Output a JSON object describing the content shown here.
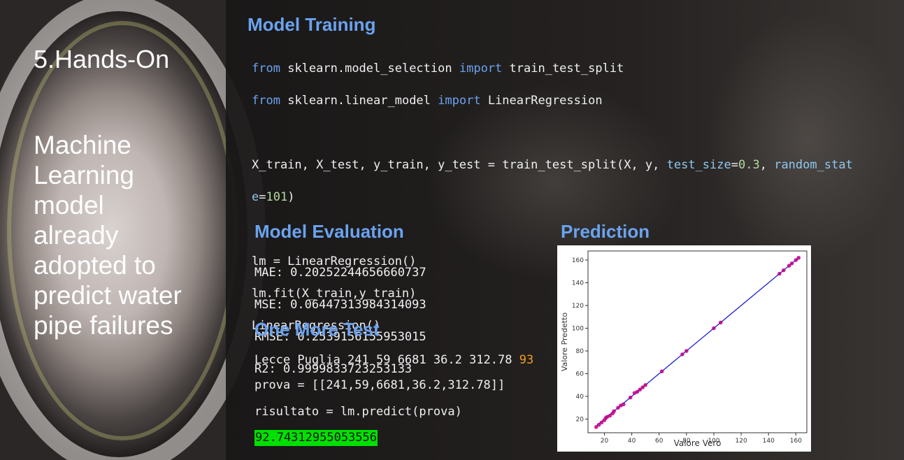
{
  "left": {
    "heading": "5.Hands-On",
    "body_lines": [
      "Machine",
      "Learning",
      "model",
      "already",
      "adopted to",
      "predict water",
      "pipe failures"
    ]
  },
  "training": {
    "title": "Model Training",
    "line1": {
      "kw1": "from",
      "mod": "sklearn.model_selection",
      "kw2": "import",
      "name": "train_test_split"
    },
    "line2": {
      "kw1": "from",
      "mod": "sklearn.linear_model",
      "kw2": "import",
      "name": "LinearRegression"
    },
    "split_pre": "X_train, X_test, y_train, y_test = train_test_split(X, y, ",
    "split_param1": "test_size",
    "split_eq1": "=",
    "split_val1": "0.3",
    "split_sep": ", ",
    "split_param2a": "random_stat",
    "split_param2b": "e",
    "split_eq2": "=",
    "split_val2": "101",
    "split_close": ")",
    "lm_line1": "lm = LinearRegression()",
    "lm_line2": "lm.fit(X_train,y_train)",
    "lm_line3": "LinearRegression()"
  },
  "evaluation": {
    "title": "Model Evaluation",
    "mae": "MAE: 0.20252244656660737",
    "mse": "MSE: 0.06447313984314093",
    "rmse": "RMSE: 0.2539156155953015",
    "r2": "R2: 0.9999833723253133"
  },
  "test": {
    "title": "One More Test",
    "row": "Lecce Puglia 241 59 6681 36.2 312.78",
    "row_target": "93",
    "prova": "prova = [[241,59,6681,36.2,312.78]]",
    "risultato": "risultato = lm.predict(prova)",
    "output": "92.74312955053556"
  },
  "prediction": {
    "title": "Prediction"
  },
  "colors": {
    "title_blue": "#6aa3f0",
    "point": "#c0008a",
    "line": "#1f1fd0",
    "result_bg": "#00e000"
  },
  "chart_data": {
    "type": "scatter",
    "xlabel": "Valore Vero",
    "ylabel": "Valore Predetto",
    "xlim": [
      8,
      168
    ],
    "ylim": [
      8,
      168
    ],
    "xticks": [
      20,
      40,
      60,
      80,
      100,
      120,
      140,
      160
    ],
    "yticks": [
      20,
      40,
      60,
      80,
      100,
      120,
      140,
      160
    ],
    "points": [
      [
        14,
        13
      ],
      [
        16,
        15
      ],
      [
        18,
        17
      ],
      [
        20,
        19
      ],
      [
        21,
        21
      ],
      [
        22,
        22
      ],
      [
        24,
        23
      ],
      [
        26,
        25
      ],
      [
        27,
        27
      ],
      [
        30,
        30
      ],
      [
        32,
        32
      ],
      [
        34,
        33
      ],
      [
        39,
        39
      ],
      [
        42,
        43
      ],
      [
        44,
        44
      ],
      [
        46,
        46
      ],
      [
        48,
        48
      ],
      [
        50,
        50
      ],
      [
        62,
        62
      ],
      [
        77,
        77
      ],
      [
        80,
        80
      ],
      [
        100,
        100
      ],
      [
        105,
        105
      ],
      [
        148,
        148
      ],
      [
        151,
        151
      ],
      [
        155,
        155
      ],
      [
        157,
        157
      ],
      [
        160,
        160
      ],
      [
        162,
        162
      ]
    ],
    "fit_line": [
      [
        14,
        14
      ],
      [
        162,
        162
      ]
    ]
  }
}
